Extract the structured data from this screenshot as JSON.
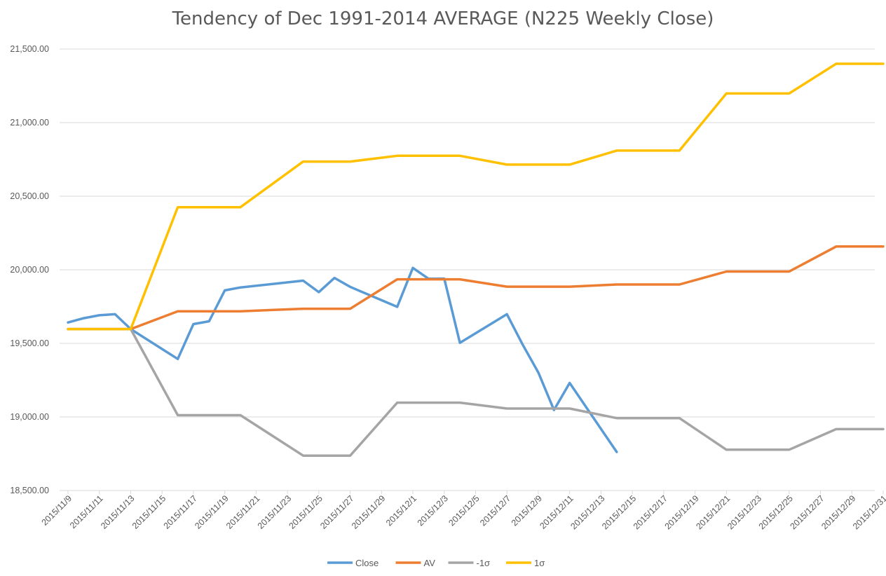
{
  "chart_data": {
    "type": "line",
    "title": "Tendency of Dec 1991-2014 AVERAGE (N225 Weekly Close)",
    "xlabel": "",
    "ylabel": "",
    "ylim": [
      18500,
      21500
    ],
    "yticks": [
      "18,500.00",
      "19,000.00",
      "19,500.00",
      "20,000.00",
      "20,500.00",
      "21,000.00",
      "21,500.00"
    ],
    "xlim": [
      "2015/11/9",
      "2015/12/31"
    ],
    "xticks": [
      "2015/11/9",
      "2015/11/11",
      "2015/11/13",
      "2015/11/15",
      "2015/11/17",
      "2015/11/19",
      "2015/11/21",
      "2015/11/23",
      "2015/11/25",
      "2015/11/27",
      "2015/11/29",
      "2015/12/1",
      "2015/12/3",
      "2015/12/5",
      "2015/12/7",
      "2015/12/9",
      "2015/12/11",
      "2015/12/13",
      "2015/12/15",
      "2015/12/17",
      "2015/12/19",
      "2015/12/21",
      "2015/12/23",
      "2015/12/25",
      "2015/12/27",
      "2015/12/29",
      "2015/12/31"
    ],
    "grid": true,
    "legend_position": "bottom",
    "series": [
      {
        "name": "Close",
        "color": "#5b9bd5",
        "points": [
          [
            "2015/11/9",
            19642
          ],
          [
            "2015/11/10",
            19671
          ],
          [
            "2015/11/11",
            19691
          ],
          [
            "2015/11/12",
            19698
          ],
          [
            "2015/11/13",
            19597
          ],
          [
            "2015/11/16",
            19394
          ],
          [
            "2015/11/17",
            19631
          ],
          [
            "2015/11/18",
            19650
          ],
          [
            "2015/11/19",
            19860
          ],
          [
            "2015/11/20",
            19880
          ],
          [
            "2015/11/24",
            19926
          ],
          [
            "2015/11/25",
            19848
          ],
          [
            "2015/11/26",
            19945
          ],
          [
            "2015/11/27",
            19884
          ],
          [
            "2015/11/30",
            19748
          ],
          [
            "2015/12/1",
            20013
          ],
          [
            "2015/12/2",
            19939
          ],
          [
            "2015/12/3",
            19940
          ],
          [
            "2015/12/4",
            19504
          ],
          [
            "2015/12/7",
            19698
          ],
          [
            "2015/12/8",
            19492
          ],
          [
            "2015/12/9",
            19302
          ],
          [
            "2015/12/10",
            19047
          ],
          [
            "2015/12/11",
            19231
          ],
          [
            "2015/12/14",
            18762
          ]
        ]
      },
      {
        "name": "AV",
        "color": "#ed7d31",
        "points": [
          [
            "2015/11/9",
            19597
          ],
          [
            "2015/11/13",
            19597
          ],
          [
            "2015/11/16",
            19718
          ],
          [
            "2015/11/20",
            19718
          ],
          [
            "2015/11/24",
            19735
          ],
          [
            "2015/11/27",
            19735
          ],
          [
            "2015/11/30",
            19935
          ],
          [
            "2015/12/4",
            19935
          ],
          [
            "2015/12/7",
            19885
          ],
          [
            "2015/12/11",
            19885
          ],
          [
            "2015/12/14",
            19900
          ],
          [
            "2015/12/18",
            19900
          ],
          [
            "2015/12/21",
            19988
          ],
          [
            "2015/12/25",
            19988
          ],
          [
            "2015/12/28",
            20158
          ],
          [
            "2015/12/31",
            20158
          ]
        ]
      },
      {
        "name": "-1σ",
        "color": "#a5a5a5",
        "points": [
          [
            "2015/11/9",
            19597
          ],
          [
            "2015/11/13",
            19597
          ],
          [
            "2015/11/16",
            19012
          ],
          [
            "2015/11/20",
            19012
          ],
          [
            "2015/11/24",
            18737
          ],
          [
            "2015/11/27",
            18737
          ],
          [
            "2015/11/30",
            19097
          ],
          [
            "2015/12/4",
            19097
          ],
          [
            "2015/12/7",
            19057
          ],
          [
            "2015/12/11",
            19057
          ],
          [
            "2015/12/14",
            18992
          ],
          [
            "2015/12/18",
            18992
          ],
          [
            "2015/12/21",
            18777
          ],
          [
            "2015/12/25",
            18777
          ],
          [
            "2015/12/28",
            18917
          ],
          [
            "2015/12/31",
            18917
          ]
        ]
      },
      {
        "name": "1σ",
        "color": "#ffc000",
        "points": [
          [
            "2015/11/9",
            19597
          ],
          [
            "2015/11/13",
            19597
          ],
          [
            "2015/11/16",
            20425
          ],
          [
            "2015/11/20",
            20425
          ],
          [
            "2015/11/24",
            20735
          ],
          [
            "2015/11/27",
            20735
          ],
          [
            "2015/11/30",
            20775
          ],
          [
            "2015/12/4",
            20775
          ],
          [
            "2015/12/7",
            20715
          ],
          [
            "2015/12/11",
            20715
          ],
          [
            "2015/12/14",
            20810
          ],
          [
            "2015/12/18",
            20810
          ],
          [
            "2015/12/21",
            21198
          ],
          [
            "2015/12/25",
            21198
          ],
          [
            "2015/12/28",
            21400
          ],
          [
            "2015/12/31",
            21400
          ]
        ]
      }
    ]
  }
}
